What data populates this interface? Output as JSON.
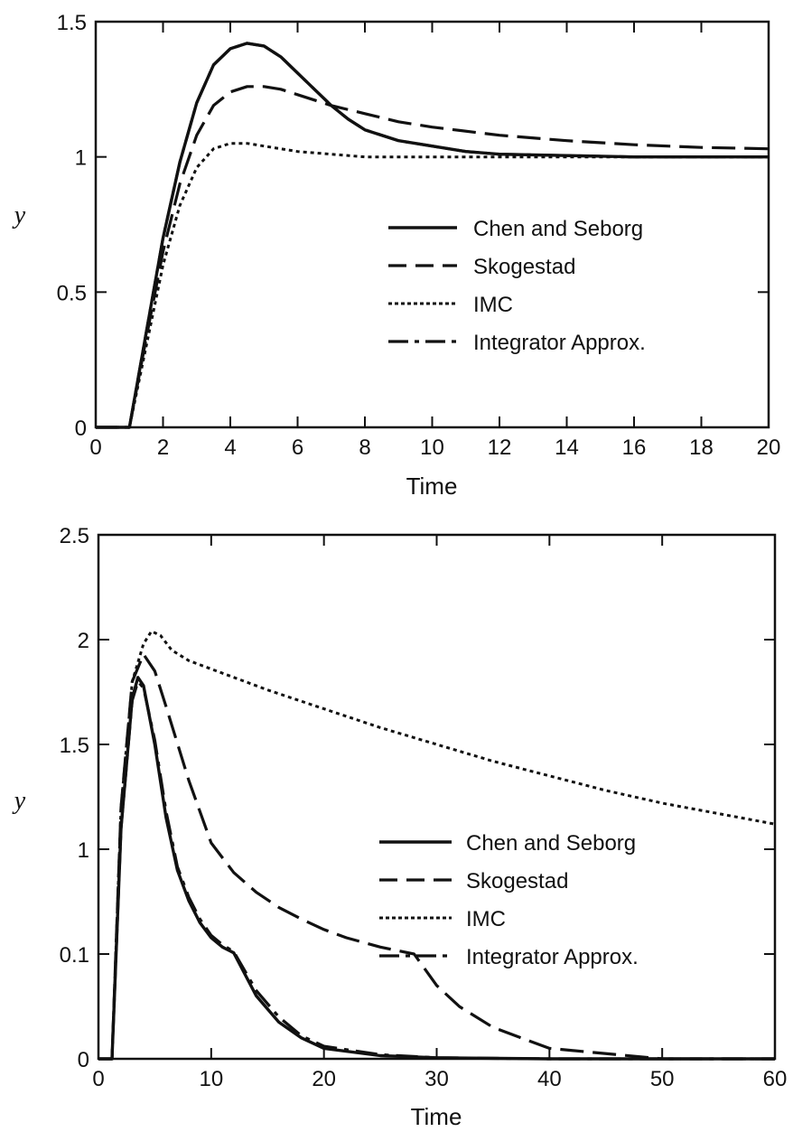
{
  "chart_data": [
    {
      "type": "line",
      "xlabel": "Time",
      "ylabel": "y",
      "xlim": [
        0,
        20
      ],
      "ylim": [
        0,
        1.5
      ],
      "x_ticks": [
        "0",
        "2",
        "4",
        "6",
        "8",
        "10",
        "12",
        "14",
        "16",
        "18",
        "20"
      ],
      "y_ticks": [
        "0",
        "0.5",
        "1",
        "1.5"
      ],
      "grid": false,
      "legend_position": "center-right",
      "series": [
        {
          "name": "Chen and Seborg",
          "style": "solid",
          "x": [
            0,
            1,
            1.5,
            2,
            2.5,
            3,
            3.5,
            4,
            4.5,
            5,
            5.5,
            6,
            6.5,
            7,
            7.5,
            8,
            9,
            10,
            11,
            12,
            14,
            16,
            18,
            20
          ],
          "y": [
            0,
            0,
            0.35,
            0.7,
            0.98,
            1.2,
            1.34,
            1.4,
            1.42,
            1.41,
            1.37,
            1.31,
            1.25,
            1.19,
            1.14,
            1.1,
            1.06,
            1.04,
            1.02,
            1.01,
            1.005,
            1.0,
            1.0,
            1.0
          ]
        },
        {
          "name": "Skogestad",
          "style": "dashed",
          "x": [
            0,
            1,
            1.5,
            2,
            2.5,
            3,
            3.5,
            4,
            4.5,
            5,
            5.5,
            6,
            7,
            8,
            9,
            10,
            12,
            14,
            16,
            18,
            20
          ],
          "y": [
            0,
            0,
            0.33,
            0.65,
            0.9,
            1.08,
            1.19,
            1.24,
            1.26,
            1.26,
            1.25,
            1.23,
            1.19,
            1.16,
            1.13,
            1.11,
            1.08,
            1.06,
            1.045,
            1.035,
            1.03
          ]
        },
        {
          "name": "IMC",
          "style": "dotted",
          "x": [
            0,
            1,
            1.5,
            2,
            2.5,
            3,
            3.5,
            4,
            4.5,
            5,
            5.5,
            6,
            7,
            8,
            10,
            12,
            14,
            16,
            18,
            20
          ],
          "y": [
            0,
            0,
            0.3,
            0.6,
            0.82,
            0.96,
            1.03,
            1.05,
            1.05,
            1.04,
            1.03,
            1.02,
            1.01,
            1.0,
            1.0,
            1.0,
            1.0,
            1.0,
            1.0,
            1.0
          ]
        },
        {
          "name": "Integrator Approx.",
          "style": "dash-dot",
          "x": [
            0,
            1,
            1.5,
            2,
            2.5,
            3,
            3.5,
            4,
            4.5,
            5,
            5.5,
            6,
            6.5,
            7,
            7.5,
            8,
            9,
            10,
            11,
            12,
            14,
            16,
            18,
            20
          ],
          "y": [
            0,
            0,
            0.35,
            0.7,
            0.98,
            1.2,
            1.34,
            1.4,
            1.42,
            1.41,
            1.37,
            1.31,
            1.25,
            1.19,
            1.14,
            1.1,
            1.06,
            1.04,
            1.02,
            1.01,
            1.005,
            1.0,
            1.0,
            1.0
          ]
        }
      ]
    },
    {
      "type": "line",
      "xlabel": "Time",
      "ylabel": "y",
      "xlim": [
        0,
        60
      ],
      "ylim": [
        0,
        2.5
      ],
      "x_ticks": [
        "0",
        "10",
        "20",
        "30",
        "40",
        "50",
        "60"
      ],
      "y_ticks": [
        "0",
        "0.1",
        "1",
        "1.5",
        "2",
        "2.5"
      ],
      "grid": false,
      "legend_position": "center-right",
      "series": [
        {
          "name": "Chen and Seborg",
          "style": "solid",
          "x": [
            0,
            1.2,
            2,
            3,
            3.5,
            4,
            5,
            6,
            7,
            8,
            9,
            10,
            11,
            12,
            14,
            16,
            18,
            20,
            25,
            30,
            40,
            50,
            60
          ],
          "y": [
            0,
            0,
            1.1,
            1.72,
            1.82,
            1.78,
            1.5,
            1.15,
            0.82,
            0.56,
            0.37,
            0.24,
            0.16,
            0.11,
            0.06,
            0.035,
            0.02,
            0.01,
            0.003,
            0.001,
            0,
            0,
            0
          ]
        },
        {
          "name": "Skogestad",
          "style": "dashed",
          "x": [
            0,
            1.2,
            2,
            3,
            4,
            5,
            6,
            8,
            10,
            12,
            14,
            16,
            18,
            20,
            22,
            25,
            28,
            30,
            32,
            35,
            40,
            50,
            60
          ],
          "y": [
            0,
            0,
            1.2,
            1.8,
            1.93,
            1.85,
            1.68,
            1.33,
            1.03,
            0.8,
            0.63,
            0.5,
            0.4,
            0.31,
            0.24,
            0.16,
            0.1,
            0.07,
            0.05,
            0.03,
            0.01,
            0,
            0
          ]
        },
        {
          "name": "IMC",
          "style": "dotted",
          "x": [
            0,
            1.2,
            2,
            3,
            4,
            4.7,
            5.5,
            6.5,
            8,
            10,
            15,
            20,
            25,
            30,
            35,
            40,
            45,
            50,
            55,
            60
          ],
          "y": [
            0,
            0,
            1.2,
            1.8,
            1.98,
            2.04,
            2.02,
            1.95,
            1.9,
            1.86,
            1.76,
            1.67,
            1.58,
            1.5,
            1.42,
            1.35,
            1.28,
            1.22,
            1.17,
            1.12
          ]
        },
        {
          "name": "Integrator Approx.",
          "style": "dash-dot",
          "x": [
            0,
            1.2,
            2,
            3,
            3.5,
            4,
            5,
            6,
            7,
            8,
            9,
            10,
            11,
            12,
            14,
            16,
            18,
            20,
            25,
            30,
            40,
            50,
            60
          ],
          "y": [
            0,
            0,
            1.1,
            1.71,
            1.8,
            1.77,
            1.52,
            1.18,
            0.85,
            0.59,
            0.4,
            0.26,
            0.18,
            0.12,
            0.065,
            0.04,
            0.022,
            0.012,
            0.004,
            0.001,
            0,
            0,
            0
          ]
        }
      ]
    }
  ]
}
